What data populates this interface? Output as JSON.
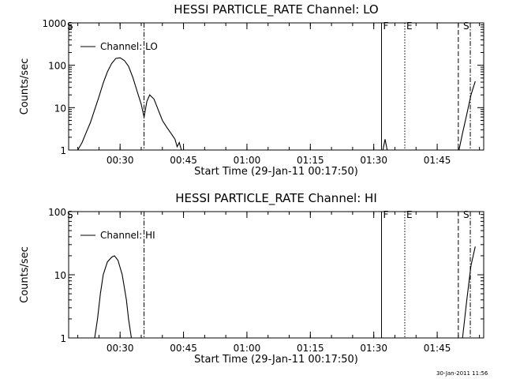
{
  "chart_data": [
    {
      "type": "line",
      "title": "HESSI PARTICLE_RATE Channel: LO",
      "xlabel": "Start Time (29-Jan-11 00:17:50)",
      "ylabel": "Counts/sec",
      "yscale": "log",
      "ylim": [
        1,
        1000
      ],
      "yticks": [
        1,
        10,
        100,
        1000
      ],
      "ytick_labels": [
        "1",
        "10",
        "100",
        "1000"
      ],
      "xlim": [
        "00:17:50",
        "01:56:00"
      ],
      "xticks": [
        "00:30",
        "00:45",
        "01:00",
        "01:15",
        "01:30",
        "01:45"
      ],
      "legend": {
        "label": "Channel: LO",
        "position": "top-left"
      },
      "markers": [
        {
          "label": "S",
          "time": "00:18:00",
          "style": "none"
        },
        {
          "label": "",
          "time": "00:35:40",
          "style": "dashdot"
        },
        {
          "label": "F",
          "time": "01:31:50",
          "style": "solid"
        },
        {
          "label": "E",
          "time": "01:37:20",
          "style": "dotted"
        },
        {
          "label": "",
          "time": "01:50:00",
          "style": "dashed"
        },
        {
          "label": "S",
          "time": "01:52:50",
          "style": "dashdot"
        }
      ],
      "series": [
        {
          "name": "Channel: LO",
          "segments": [
            [
              [
                "00:20:00",
                1
              ],
              [
                "00:21:00",
                1.5
              ],
              [
                "00:22:00",
                2.6
              ],
              [
                "00:23:00",
                4.5
              ],
              [
                "00:24:00",
                9
              ],
              [
                "00:25:00",
                18
              ],
              [
                "00:26:00",
                38
              ],
              [
                "00:27:00",
                70
              ],
              [
                "00:28:00",
                110
              ],
              [
                "00:29:00",
                145
              ],
              [
                "00:30:00",
                150
              ],
              [
                "00:31:00",
                130
              ],
              [
                "00:32:00",
                95
              ],
              [
                "00:33:00",
                52
              ],
              [
                "00:34:00",
                25
              ],
              [
                "00:35:00",
                12
              ],
              [
                "00:35:40",
                6
              ],
              [
                "00:36:20",
                14
              ],
              [
                "00:37:00",
                20
              ],
              [
                "00:38:00",
                16
              ],
              [
                "00:39:00",
                9
              ],
              [
                "00:40:00",
                5
              ],
              [
                "00:41:00",
                3.5
              ],
              [
                "00:42:00",
                2.5
              ],
              [
                "00:43:00",
                1.8
              ],
              [
                "00:43:30",
                1.2
              ],
              [
                "00:44:00",
                1.5
              ],
              [
                "00:44:30",
                1
              ]
            ],
            [
              [
                "01:32:10",
                1
              ],
              [
                "01:32:40",
                1.8
              ],
              [
                "01:33:10",
                1
              ]
            ],
            [
              [
                "01:50:10",
                1
              ],
              [
                "01:51:00",
                2.5
              ],
              [
                "01:52:00",
                7
              ],
              [
                "01:53:00",
                20
              ],
              [
                "01:54:00",
                42
              ]
            ]
          ]
        }
      ]
    },
    {
      "type": "line",
      "title": "HESSI PARTICLE_RATE Channel: HI",
      "xlabel": "Start Time (29-Jan-11 00:17:50)",
      "ylabel": "Counts/sec",
      "yscale": "log",
      "ylim": [
        1,
        100
      ],
      "yticks": [
        1,
        10,
        100
      ],
      "ytick_labels": [
        "1",
        "10",
        "100"
      ],
      "xlim": [
        "00:17:50",
        "01:56:00"
      ],
      "xticks": [
        "00:30",
        "00:45",
        "01:00",
        "01:15",
        "01:30",
        "01:45"
      ],
      "legend": {
        "label": "Channel: HI",
        "position": "top-left"
      },
      "markers": [
        {
          "label": "S",
          "time": "00:18:00",
          "style": "none"
        },
        {
          "label": "",
          "time": "00:35:40",
          "style": "dashdot"
        },
        {
          "label": "F",
          "time": "01:31:50",
          "style": "solid"
        },
        {
          "label": "E",
          "time": "01:37:20",
          "style": "dotted"
        },
        {
          "label": "",
          "time": "01:50:00",
          "style": "dashed"
        },
        {
          "label": "S",
          "time": "01:52:50",
          "style": "dashdot"
        }
      ],
      "series": [
        {
          "name": "Channel: HI",
          "segments": [
            [
              [
                "00:24:00",
                1
              ],
              [
                "00:24:40",
                2
              ],
              [
                "00:25:20",
                5
              ],
              [
                "00:26:00",
                10
              ],
              [
                "00:27:00",
                16
              ],
              [
                "00:28:00",
                19
              ],
              [
                "00:28:40",
                20
              ],
              [
                "00:29:30",
                17
              ],
              [
                "00:30:30",
                10
              ],
              [
                "00:31:30",
                4
              ],
              [
                "00:32:00",
                2
              ],
              [
                "00:32:40",
                1
              ]
            ],
            [
              [
                "01:51:00",
                1
              ],
              [
                "01:52:00",
                4
              ],
              [
                "01:53:00",
                14
              ],
              [
                "01:54:00",
                28
              ]
            ]
          ]
        }
      ]
    }
  ],
  "footer": {
    "timestamp": "30-Jan-2011 11:56"
  }
}
